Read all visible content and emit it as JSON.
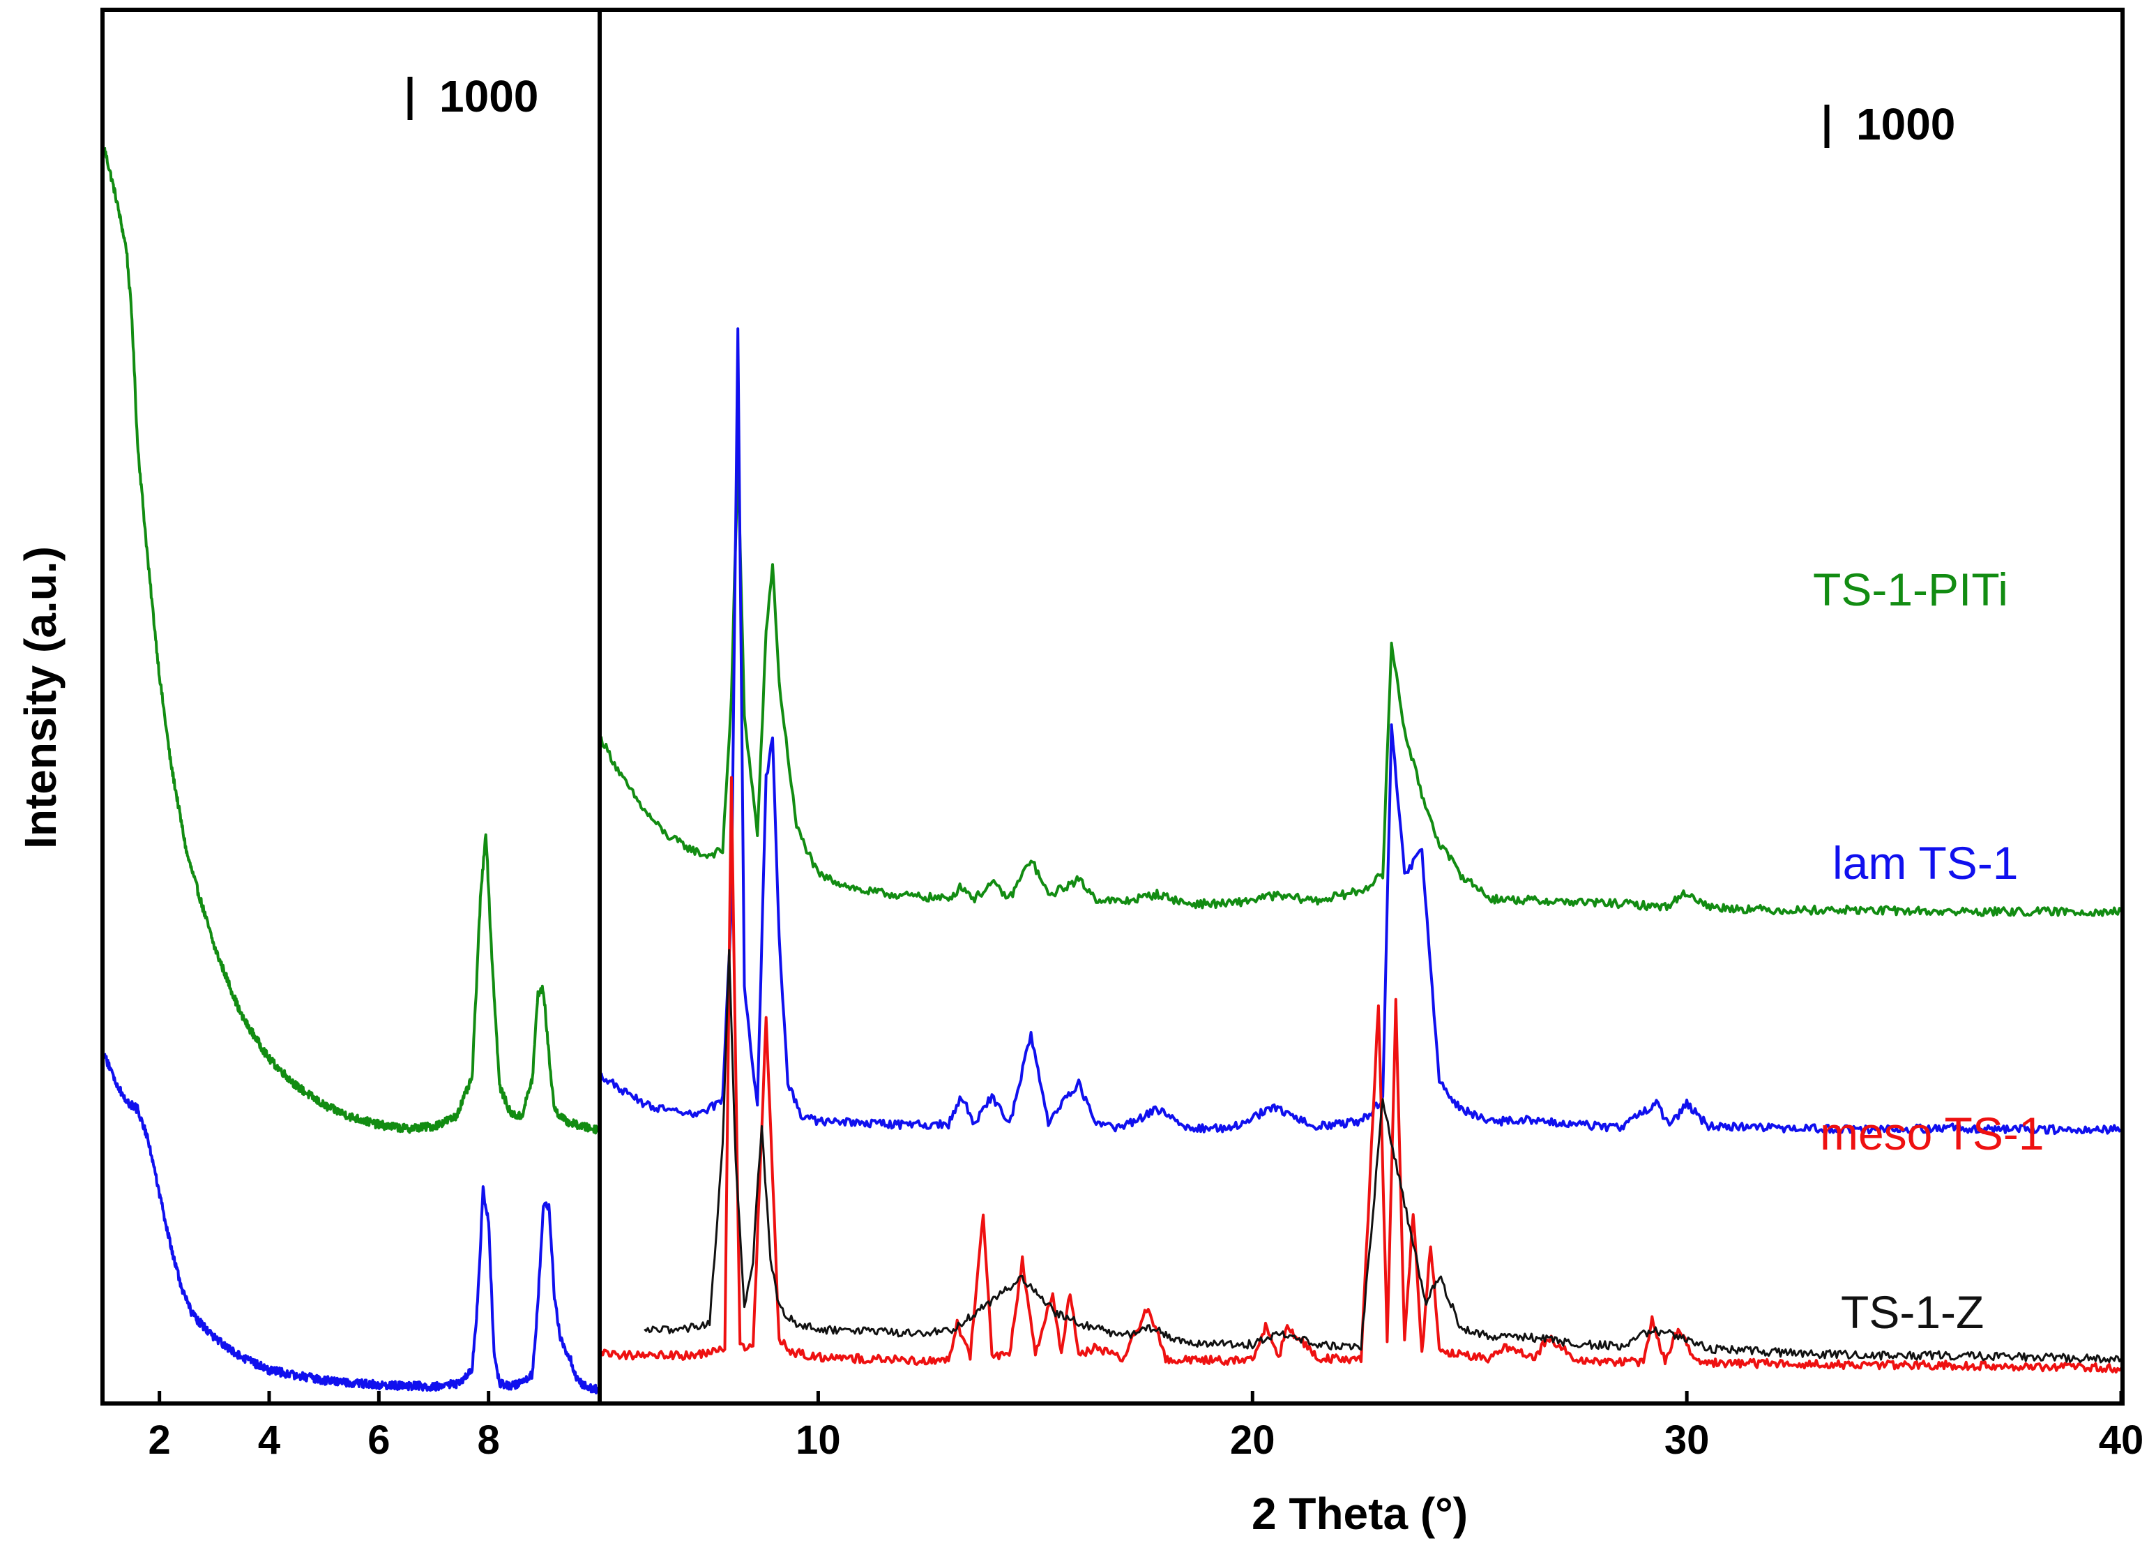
{
  "chart_data": [
    {
      "panel": "left",
      "type": "line",
      "title": "",
      "xlabel": "",
      "ylabel": "Intensity (a.u.)",
      "xlim": [
        1,
        10
      ],
      "x_ticks": [
        2,
        4,
        6,
        8
      ],
      "tick_labels": [
        "2",
        "4",
        "6",
        "8"
      ],
      "scale_bar_label": "1000",
      "series": [
        {
          "name": "TS-1-PITi",
          "color": "#128c12",
          "x": [
            1.0,
            1.2,
            1.4,
            1.5,
            1.6,
            1.8,
            2.0,
            2.2,
            2.5,
            3.0,
            3.5,
            4.0,
            4.5,
            5.0,
            5.5,
            6.0,
            6.5,
            7.0,
            7.4,
            7.7,
            7.85,
            7.95,
            8.05,
            8.2,
            8.4,
            8.6,
            8.8,
            8.9,
            9.0,
            9.1,
            9.2,
            9.4,
            9.6,
            9.8,
            10.0
          ],
          "y": [
            16200,
            15600,
            14900,
            14000,
            12400,
            10800,
            9400,
            8300,
            7100,
            5900,
            5000,
            4450,
            4100,
            3850,
            3700,
            3600,
            3550,
            3580,
            3700,
            4200,
            6500,
            7400,
            5900,
            4100,
            3750,
            3700,
            4200,
            5300,
            5350,
            4500,
            3800,
            3650,
            3600,
            3560,
            3540
          ]
        },
        {
          "name": "lam TS-1",
          "color": "#1010ee",
          "x": [
            1.0,
            1.2,
            1.4,
            1.6,
            1.8,
            2.0,
            2.2,
            2.4,
            2.6,
            3.0,
            3.5,
            4.0,
            5.0,
            6.0,
            7.0,
            7.5,
            7.7,
            7.8,
            7.9,
            8.0,
            8.1,
            8.2,
            8.4,
            8.6,
            8.8,
            8.9,
            9.0,
            9.1,
            9.2,
            9.3,
            9.4,
            9.5,
            9.6,
            9.8,
            10.0
          ],
          "y": [
            4500,
            4150,
            3900,
            3800,
            3400,
            2700,
            2050,
            1500,
            1150,
            850,
            600,
            430,
            300,
            240,
            220,
            260,
            450,
            1300,
            2750,
            2350,
            650,
            260,
            220,
            260,
            380,
            1300,
            2600,
            2550,
            1400,
            880,
            700,
            560,
            320,
            200,
            180
          ]
        }
      ]
    },
    {
      "panel": "right",
      "type": "line",
      "title": "",
      "xlabel": "2 Theta (°)",
      "ylabel": "",
      "xlim": [
        5,
        40
      ],
      "x_ticks": [
        10,
        20,
        30,
        40
      ],
      "tick_labels": [
        "10",
        "20",
        "30",
        "40"
      ],
      "scale_bar_label": "1000",
      "legend": [
        "TS-1-PITi",
        "lam TS-1",
        "meso TS-1",
        "TS-1-Z"
      ],
      "series": [
        {
          "name": "TS-1-PITi",
          "color": "#128c12",
          "x": [
            5.0,
            5.5,
            6.0,
            6.5,
            7.0,
            7.4,
            7.8,
            8.0,
            8.15,
            8.3,
            8.6,
            8.8,
            8.95,
            9.1,
            9.5,
            10.0,
            11.0,
            12.0,
            13.0,
            13.3,
            13.6,
            14.0,
            14.4,
            14.9,
            15.3,
            16.0,
            16.4,
            17.0,
            17.8,
            18.5,
            19.5,
            20.5,
            21.5,
            22.5,
            23.0,
            23.2,
            23.5,
            23.9,
            24.3,
            24.8,
            25.5,
            26.5,
            27.5,
            28.5,
            29.5,
            30.0,
            30.5,
            32.0,
            34.0,
            36.0,
            38.0,
            40.0
          ],
          "y": [
            4150,
            3900,
            3700,
            3550,
            3470,
            3420,
            3450,
            4400,
            5900,
            4300,
            3550,
            4800,
            5250,
            4500,
            3600,
            3300,
            3200,
            3170,
            3150,
            3230,
            3150,
            3250,
            3150,
            3400,
            3170,
            3270,
            3150,
            3130,
            3180,
            3120,
            3120,
            3170,
            3140,
            3200,
            3300,
            4750,
            4200,
            3800,
            3500,
            3300,
            3150,
            3140,
            3130,
            3120,
            3100,
            3190,
            3100,
            3080,
            3080,
            3070,
            3070,
            3070
          ]
        },
        {
          "name": "lam TS-1",
          "color": "#1010ee",
          "x": [
            5.0,
            5.5,
            6.0,
            6.5,
            7.0,
            7.4,
            7.8,
            8.0,
            8.15,
            8.3,
            8.6,
            8.8,
            8.95,
            9.1,
            9.3,
            9.6,
            10.0,
            11.0,
            12.0,
            13.0,
            13.3,
            13.6,
            14.0,
            14.4,
            14.9,
            15.3,
            16.0,
            16.4,
            17.0,
            17.8,
            18.5,
            19.5,
            20.5,
            21.5,
            22.5,
            23.0,
            23.2,
            23.5,
            23.9,
            24.3,
            24.8,
            25.5,
            26.5,
            27.5,
            28.5,
            29.3,
            29.6,
            30.0,
            30.5,
            32.0,
            34.0,
            36.0,
            38.0,
            40.0
          ],
          "y": [
            2050,
            1950,
            1870,
            1830,
            1800,
            1820,
            1900,
            3100,
            6700,
            2600,
            1850,
            3900,
            4150,
            2900,
            2000,
            1800,
            1760,
            1750,
            1740,
            1740,
            1920,
            1740,
            1920,
            1740,
            2300,
            1760,
            2000,
            1740,
            1720,
            1840,
            1720,
            1720,
            1850,
            1730,
            1760,
            1900,
            4250,
            3300,
            3450,
            2000,
            1840,
            1760,
            1770,
            1740,
            1720,
            1880,
            1730,
            1870,
            1730,
            1720,
            1710,
            1720,
            1710,
            1710
          ]
        },
        {
          "name": "meso TS-1",
          "color": "#ee1111",
          "x": [
            5.0,
            6.0,
            7.0,
            7.5,
            7.85,
            8.0,
            8.2,
            8.5,
            8.8,
            8.95,
            9.1,
            9.4,
            10.0,
            11.0,
            12.0,
            13.0,
            13.2,
            13.5,
            13.8,
            14.0,
            14.4,
            14.7,
            15.0,
            15.4,
            15.6,
            15.8,
            16.0,
            16.4,
            17.0,
            17.6,
            18.0,
            19.0,
            20.0,
            20.3,
            20.6,
            20.8,
            21.5,
            22.5,
            22.9,
            23.1,
            23.3,
            23.5,
            23.7,
            23.9,
            24.1,
            24.3,
            24.6,
            25.5,
            25.8,
            26.5,
            26.8,
            27.5,
            29.0,
            29.2,
            29.5,
            29.8,
            30.2,
            31.0,
            32.0,
            34.0,
            36.0,
            38.0,
            40.0
          ],
          "y": [
            310,
            300,
            300,
            310,
            350,
            3900,
            350,
            350,
            2400,
            1400,
            400,
            320,
            290,
            280,
            270,
            270,
            500,
            300,
            1200,
            300,
            300,
            900,
            300,
            700,
            300,
            700,
            300,
            350,
            280,
            600,
            280,
            270,
            270,
            480,
            280,
            480,
            280,
            280,
            2500,
            380,
            2500,
            380,
            1200,
            300,
            1000,
            350,
            310,
            280,
            360,
            280,
            420,
            260,
            260,
            520,
            260,
            470,
            260,
            250,
            250,
            240,
            240,
            230,
            220
          ]
        },
        {
          "name": "TS-1-Z",
          "color": "#111111",
          "x": [
            6.0,
            6.5,
            7.0,
            7.5,
            7.8,
            7.95,
            8.1,
            8.3,
            8.5,
            8.7,
            8.9,
            9.1,
            9.5,
            10.0,
            11.0,
            12.0,
            13.0,
            13.8,
            14.7,
            15.5,
            16.0,
            17.0,
            17.7,
            18.5,
            20.0,
            20.7,
            21.5,
            22.5,
            23.0,
            23.3,
            23.7,
            24.0,
            24.3,
            24.8,
            25.5,
            26.5,
            27.5,
            28.5,
            29.2,
            29.8,
            30.5,
            32.0,
            34.0,
            36.0,
            38.0,
            40.0
          ],
          "y": [
            450,
            460,
            470,
            500,
            1600,
            2850,
            1500,
            600,
            900,
            1750,
            900,
            600,
            500,
            460,
            450,
            440,
            450,
            600,
            780,
            560,
            500,
            420,
            470,
            370,
            370,
            440,
            360,
            360,
            1900,
            1500,
            1000,
            620,
            800,
            470,
            420,
            410,
            370,
            360,
            460,
            420,
            340,
            320,
            300,
            300,
            290,
            280
          ]
        }
      ]
    }
  ]
}
